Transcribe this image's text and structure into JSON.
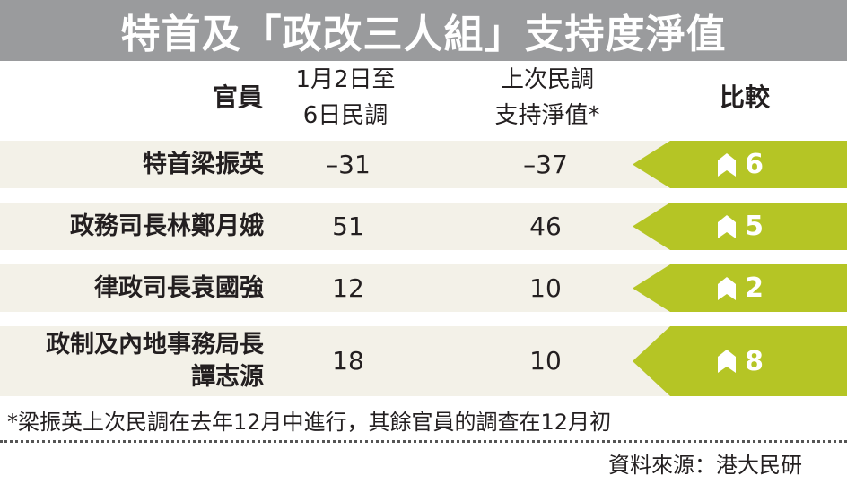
{
  "title": "特首及「政改三人組」支持度淨值",
  "header": {
    "official": "官員",
    "current_line1": "1月2日至",
    "current_line2": "6日民調",
    "previous_line1": "上次民調",
    "previous_line2": "支持淨值*",
    "compare": "比較"
  },
  "chart_data": {
    "type": "table",
    "columns": [
      "官員",
      "1月2日至6日民調",
      "上次民調支持淨值*",
      "比較"
    ],
    "rows": [
      {
        "name": "特首梁振英",
        "name_lines": [
          "特首梁振英"
        ],
        "current": "–31",
        "previous": "–37",
        "change": "6",
        "direction": "up"
      },
      {
        "name": "政務司長林鄭月娥",
        "name_lines": [
          "政務司長林鄭月娥"
        ],
        "current": "51",
        "previous": "46",
        "change": "5",
        "direction": "up"
      },
      {
        "name": "律政司長袁國強",
        "name_lines": [
          "律政司長袁國強"
        ],
        "current": "12",
        "previous": "10",
        "change": "2",
        "direction": "up"
      },
      {
        "name": "政制及內地事務局長譚志源",
        "name_lines": [
          "政制及內地事務局長",
          "譚志源"
        ],
        "current": "18",
        "previous": "10",
        "change": "8",
        "direction": "up"
      }
    ]
  },
  "colors": {
    "title_bar": "#9a9b9d",
    "row_background": "#f3f1e8",
    "arrow_green": "#b5c525",
    "text": "#231f20"
  },
  "icons": {
    "change": "up-flag-icon"
  },
  "footnote": "*梁振英上次民調在去年12月中進行，其餘官員的調查在12月初",
  "source": "資料來源：港大民研"
}
